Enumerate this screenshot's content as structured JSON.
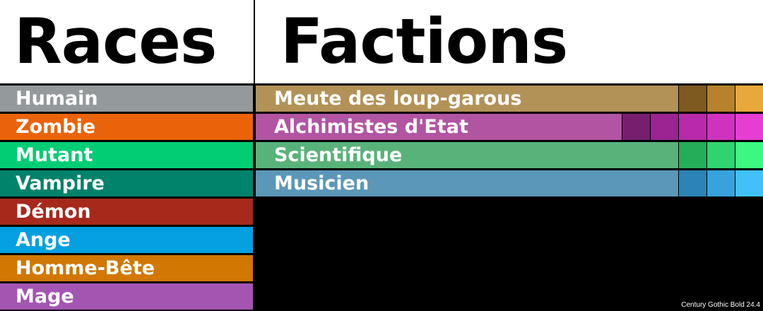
{
  "headers": {
    "races": "Races",
    "factions": "Factions"
  },
  "races": [
    {
      "label": "Humain",
      "color": "#949a9c"
    },
    {
      "label": "Zombie",
      "color": "#eb6309"
    },
    {
      "label": "Mutant",
      "color": "#02cd75"
    },
    {
      "label": "Vampire",
      "color": "#01826a"
    },
    {
      "label": "Démon",
      "color": "#a7291c"
    },
    {
      "label": "Ange",
      "color": "#04a0e2"
    },
    {
      "label": "Homme-Bête",
      "color": "#d17702"
    },
    {
      "label": "Mage",
      "color": "#a455b2"
    }
  ],
  "factions": [
    {
      "label": "Meute des loup-garous",
      "color": "#b29257",
      "swatches": [
        "#7e5a20",
        "#b7822c",
        "#e9a83c"
      ]
    },
    {
      "label": "Alchimistes d'Etat",
      "color": "#b155a3",
      "swatches": [
        "#781e6e",
        "#9b2392",
        "#b92aaa",
        "#d032c0",
        "#e63ed2"
      ]
    },
    {
      "label": "Scientifique",
      "color": "#58b37a",
      "swatches": [
        "#26ad5a",
        "#2fd46f",
        "#3cf883"
      ]
    },
    {
      "label": "Musicien",
      "color": "#5b97b8",
      "swatches": [
        "#2b83b6",
        "#38a2dc",
        "#42c0f8"
      ]
    }
  ],
  "caption": "Century Gothic Bold 24.4"
}
